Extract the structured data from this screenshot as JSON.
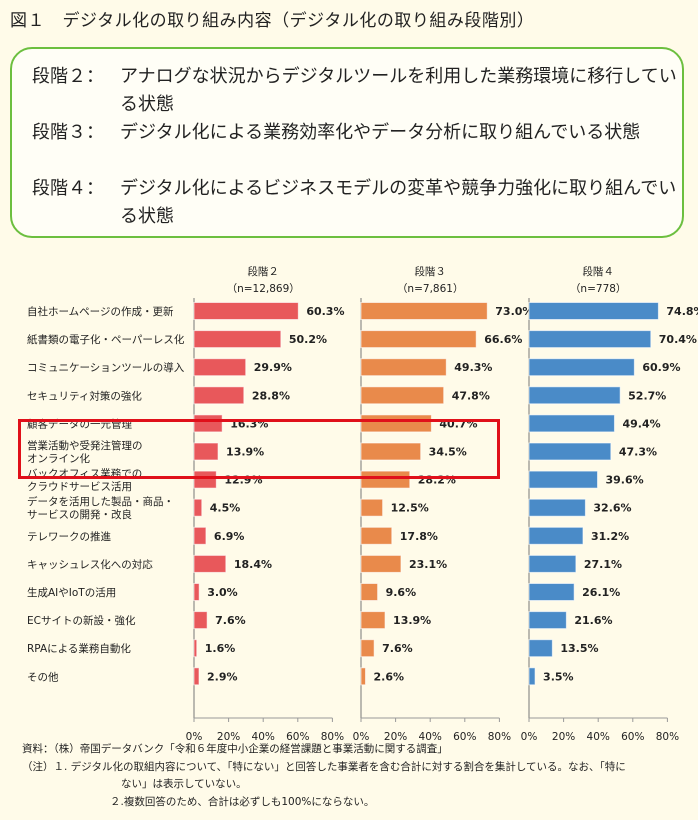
{
  "title": "図１　デジタル化の取り組み内容（デジタル化の取り組み段階別）",
  "definitions": [
    {
      "label": "段階２：",
      "text": "アナログな状況からデジタルツールを利用した業務環境に移行している状態"
    },
    {
      "label": "段階３：",
      "text": "デジタル化による業務効率化やデータ分析に取り組んでいる状態"
    },
    {
      "label": "段階４：",
      "text": "デジタル化によるビジネスモデルの変革や競争力強化に取り組んでいる状態"
    }
  ],
  "chart_data": {
    "type": "bar",
    "orientation": "horizontal",
    "categories": [
      "自社ホームページの作成・更新",
      "紙書類の電子化・ペーパーレス化",
      "コミュニケーションツールの導入",
      "セキュリティ対策の強化",
      "顧客データの一元管理",
      "営業活動や受発注管理の\nオンライン化",
      "バックオフィス業務での\nクラウドサービス活用",
      "データを活用した製品・商品・\nサービスの開発・改良",
      "テレワークの推進",
      "キャッシュレス化への対応",
      "生成AIやIoTの活用",
      "ECサイトの新設・強化",
      "RPAによる業務自動化",
      "その他"
    ],
    "series": [
      {
        "name": "段階２",
        "n": "（n=12,869）",
        "color": "#e8585b",
        "values": [
          60.3,
          50.2,
          29.9,
          28.8,
          16.3,
          13.9,
          12.9,
          4.5,
          6.9,
          18.4,
          3.0,
          7.6,
          1.6,
          2.9
        ]
      },
      {
        "name": "段階３",
        "n": "（n=7,861）",
        "color": "#e98a4b",
        "values": [
          73.0,
          66.6,
          49.3,
          47.8,
          40.7,
          34.5,
          28.2,
          12.5,
          17.8,
          23.1,
          9.6,
          13.9,
          7.6,
          2.6
        ]
      },
      {
        "name": "段階４",
        "n": "（n=778）",
        "color": "#4a8bc8",
        "values": [
          74.8,
          70.4,
          60.9,
          52.7,
          49.4,
          47.3,
          39.6,
          32.6,
          31.2,
          27.1,
          26.1,
          21.6,
          13.5,
          3.5
        ]
      }
    ],
    "xlim": [
      0,
      80
    ],
    "xticks": [
      "0%",
      "20%",
      "40%",
      "60%",
      "80%"
    ],
    "value_suffix": "%",
    "highlighted_categories": [
      "顧客データの一元管理",
      "営業活動や受発注管理の\nオンライン化"
    ],
    "highlight_color": "#e0101a",
    "grid": false
  },
  "notes": {
    "source": "資料：（株）帝国データバンク「令和６年度中小企業の経営課題と事業活動に関する調査」",
    "note1a": "（注）１. デジタル化の取組内容について、「特にない」と回答した事業者を含む合計に対する割合を集計している。なお、「特に",
    "note1b": "ない」は表示していない。",
    "note2": "２.複数回答のため、合計は必ずしも100%にならない。"
  }
}
